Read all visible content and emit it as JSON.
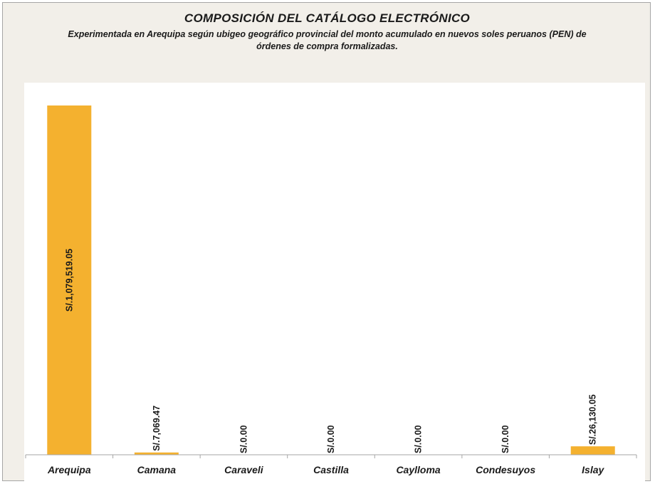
{
  "chart_data": {
    "type": "bar",
    "title": "COMPOSICIÓN DEL CATÁLOGO ELECTRÓNICO",
    "subtitle": "Experimentada en Arequipa según ubigeo geográfico provincial del monto acumulado en nuevos soles peruanos (PEN) de órdenes de compra formalizadas.",
    "categories": [
      "Arequipa",
      "Camana",
      "Caraveli",
      "Castilla",
      "Caylloma",
      "Condesuyos",
      "Islay"
    ],
    "values": [
      1079519.05,
      7069.47,
      0.0,
      0.0,
      0.0,
      0.0,
      26130.05
    ],
    "data_labels": [
      "S/.1,079,519.05",
      "S/.7,069.47",
      "S/.0.00",
      "S/.0.00",
      "S/.0.00",
      "S/.0.00",
      "S/.26,130.05"
    ],
    "xlabel": "",
    "ylabel": "",
    "ylim": [
      0,
      1150000
    ],
    "grid": false,
    "legend": "none",
    "bar_color": "#f4b12f",
    "axis_color": "#a6a6a6"
  }
}
